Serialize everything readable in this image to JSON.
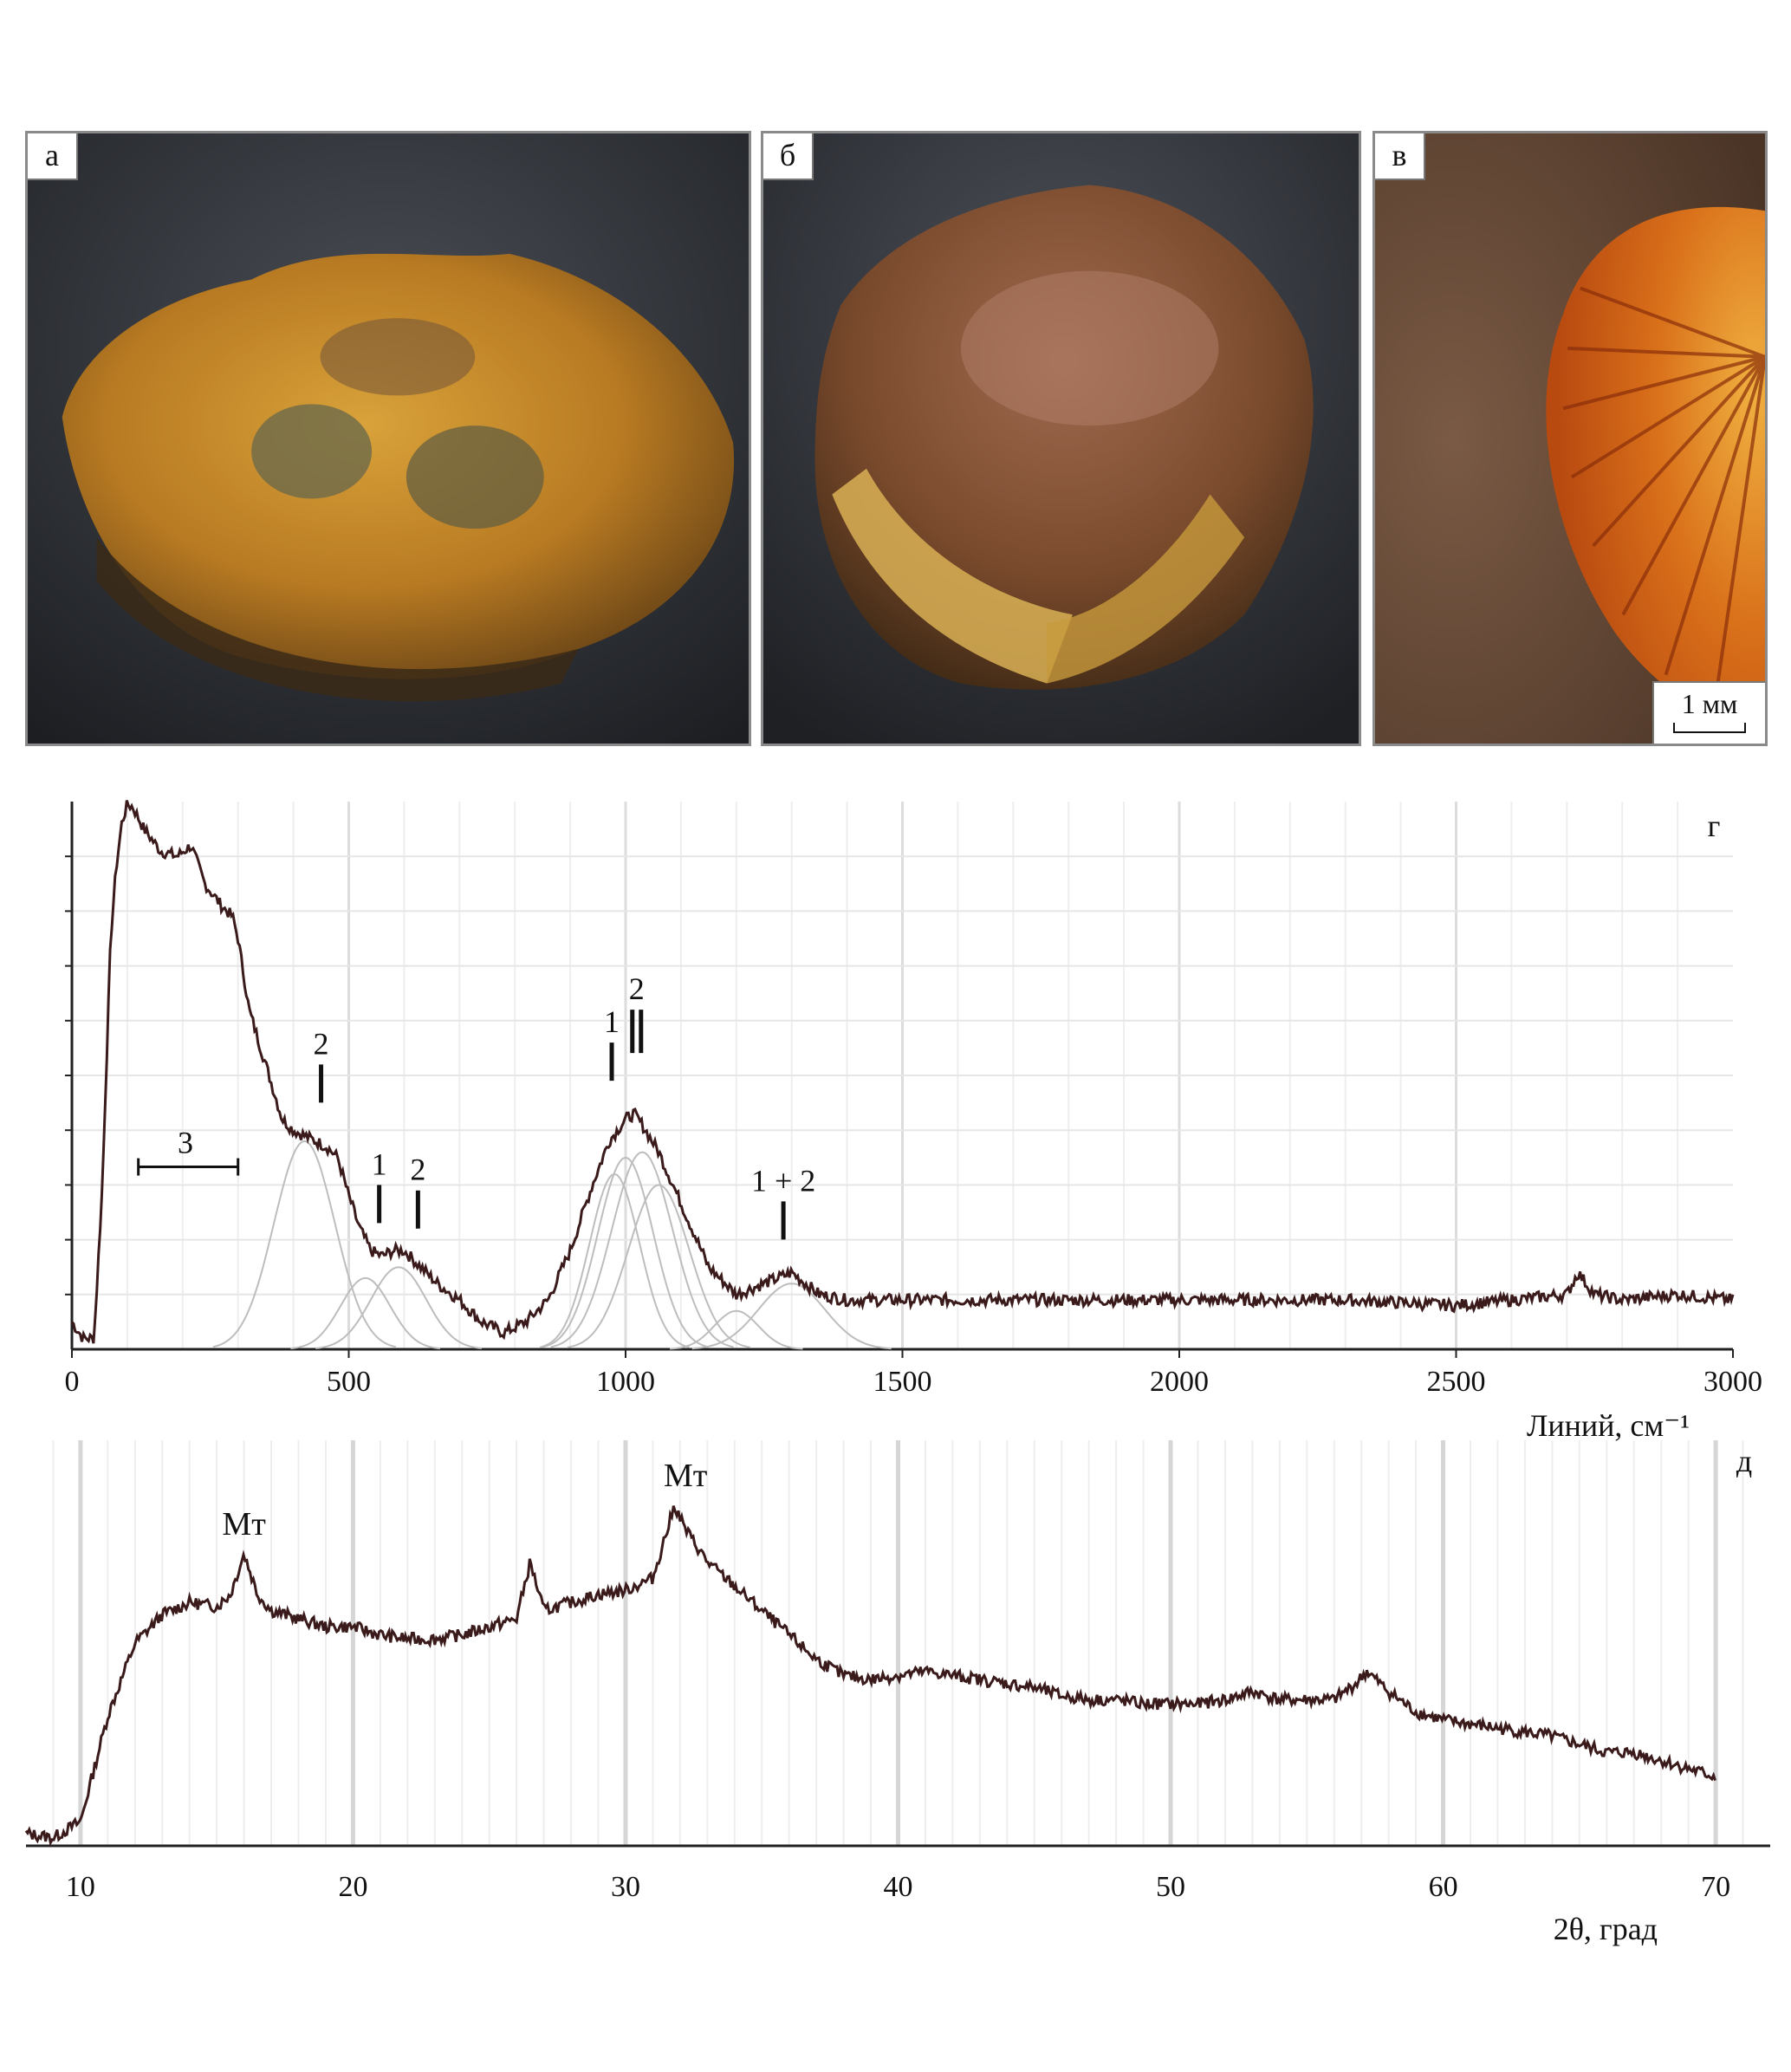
{
  "photos": {
    "a": {
      "label": "а"
    },
    "b": {
      "label": "б"
    },
    "v": {
      "label": "в",
      "scale_label": "1 мм"
    }
  },
  "chart_data": [
    {
      "type": "line",
      "panel_label": "г",
      "xlabel": "Линий, см⁻¹",
      "x_ticks": [
        0,
        500,
        1000,
        1500,
        2000,
        2500,
        3000
      ],
      "xlim": [
        0,
        3000
      ],
      "ylim": [
        0,
        1
      ],
      "series": [
        {
          "x": [
            0,
            20,
            40,
            55,
            70,
            80,
            90,
            100,
            110,
            130,
            160,
            190,
            215,
            240,
            270,
            290,
            300,
            320,
            350,
            380,
            400,
            420,
            440,
            460,
            480,
            500,
            520,
            540,
            560,
            580,
            600,
            630,
            660,
            700,
            740,
            780,
            800,
            820,
            860,
            900,
            940,
            970,
            1000,
            1015,
            1030,
            1060,
            1090,
            1120,
            1150,
            1200,
            1250,
            1300,
            1350,
            1400,
            1500,
            1700,
            2000,
            2300,
            2500,
            2600,
            2700,
            2720,
            2750,
            2800,
            2900,
            3000
          ],
          "y": [
            0.05,
            0.02,
            0.02,
            0.3,
            0.75,
            0.88,
            0.96,
            0.995,
            0.99,
            0.95,
            0.91,
            0.9,
            0.92,
            0.85,
            0.81,
            0.79,
            0.75,
            0.62,
            0.52,
            0.42,
            0.4,
            0.39,
            0.38,
            0.37,
            0.35,
            0.28,
            0.22,
            0.18,
            0.17,
            0.18,
            0.18,
            0.15,
            0.12,
            0.09,
            0.05,
            0.03,
            0.04,
            0.05,
            0.09,
            0.18,
            0.3,
            0.38,
            0.42,
            0.43,
            0.41,
            0.36,
            0.29,
            0.22,
            0.15,
            0.1,
            0.12,
            0.14,
            0.1,
            0.09,
            0.09,
            0.09,
            0.09,
            0.09,
            0.08,
            0.09,
            0.1,
            0.14,
            0.1,
            0.09,
            0.1,
            0.09
          ]
        }
      ],
      "fit_peaks": [
        {
          "center": 420,
          "height": 0.38,
          "width": 55
        },
        {
          "center": 530,
          "height": 0.13,
          "width": 45
        },
        {
          "center": 590,
          "height": 0.15,
          "width": 50
        },
        {
          "center": 980,
          "height": 0.32,
          "width": 45
        },
        {
          "center": 1000,
          "height": 0.35,
          "width": 50
        },
        {
          "center": 1030,
          "height": 0.36,
          "width": 55
        },
        {
          "center": 1060,
          "height": 0.3,
          "width": 55
        },
        {
          "center": 1200,
          "height": 0.07,
          "width": 40
        },
        {
          "center": 1300,
          "height": 0.12,
          "width": 60
        }
      ],
      "annotations": [
        {
          "text": "2",
          "x": 450,
          "y": 0.52,
          "marker": "single"
        },
        {
          "text": "1",
          "x": 555,
          "y": 0.3,
          "marker": "single"
        },
        {
          "text": "2",
          "x": 625,
          "y": 0.29,
          "marker": "single"
        },
        {
          "text": "1",
          "x": 975,
          "y": 0.56,
          "marker": "single"
        },
        {
          "text": "2",
          "x": 1020,
          "y": 0.62,
          "marker": "double"
        },
        {
          "text": "1 + 2",
          "x": 1285,
          "y": 0.27,
          "marker": "single"
        },
        {
          "text": "3",
          "x": 205,
          "y": 0.42,
          "marker": "range",
          "x_start": 120,
          "x_end": 300
        }
      ]
    },
    {
      "type": "line",
      "panel_label": "д",
      "xlabel": "2θ, град",
      "x_ticks": [
        10,
        20,
        30,
        40,
        50,
        60,
        70
      ],
      "xlim": [
        8,
        72
      ],
      "ylim": [
        0,
        1
      ],
      "series": [
        {
          "x": [
            8,
            9,
            10,
            11,
            12,
            13,
            14,
            15,
            15.5,
            16,
            16.5,
            17,
            18,
            19,
            20,
            21,
            22,
            23,
            24,
            25,
            26,
            26.5,
            27,
            28,
            29,
            30,
            31,
            31.8,
            32.2,
            33,
            34,
            35,
            36,
            37,
            38,
            39,
            40,
            41,
            42,
            43,
            44,
            45,
            46,
            47,
            48,
            49,
            50,
            51,
            52,
            53,
            54,
            55,
            56,
            56.8,
            57.2,
            58,
            59,
            60,
            61,
            62,
            63,
            64,
            65,
            66,
            67,
            68,
            69,
            70
          ],
          "y": [
            0.03,
            0.02,
            0.06,
            0.32,
            0.5,
            0.57,
            0.6,
            0.59,
            0.62,
            0.72,
            0.62,
            0.58,
            0.56,
            0.54,
            0.54,
            0.52,
            0.51,
            0.51,
            0.52,
            0.54,
            0.56,
            0.7,
            0.58,
            0.6,
            0.62,
            0.63,
            0.66,
            0.84,
            0.78,
            0.7,
            0.64,
            0.58,
            0.52,
            0.46,
            0.42,
            0.41,
            0.42,
            0.43,
            0.42,
            0.41,
            0.4,
            0.39,
            0.37,
            0.36,
            0.36,
            0.35,
            0.35,
            0.35,
            0.36,
            0.38,
            0.36,
            0.36,
            0.36,
            0.4,
            0.43,
            0.38,
            0.33,
            0.31,
            0.3,
            0.29,
            0.28,
            0.27,
            0.25,
            0.23,
            0.23,
            0.21,
            0.19,
            0.17
          ]
        }
      ],
      "annotations": [
        {
          "text": "Мт",
          "x": 16,
          "y": 0.72
        },
        {
          "text": "Мт",
          "x": 32.2,
          "y": 0.84
        }
      ]
    }
  ]
}
